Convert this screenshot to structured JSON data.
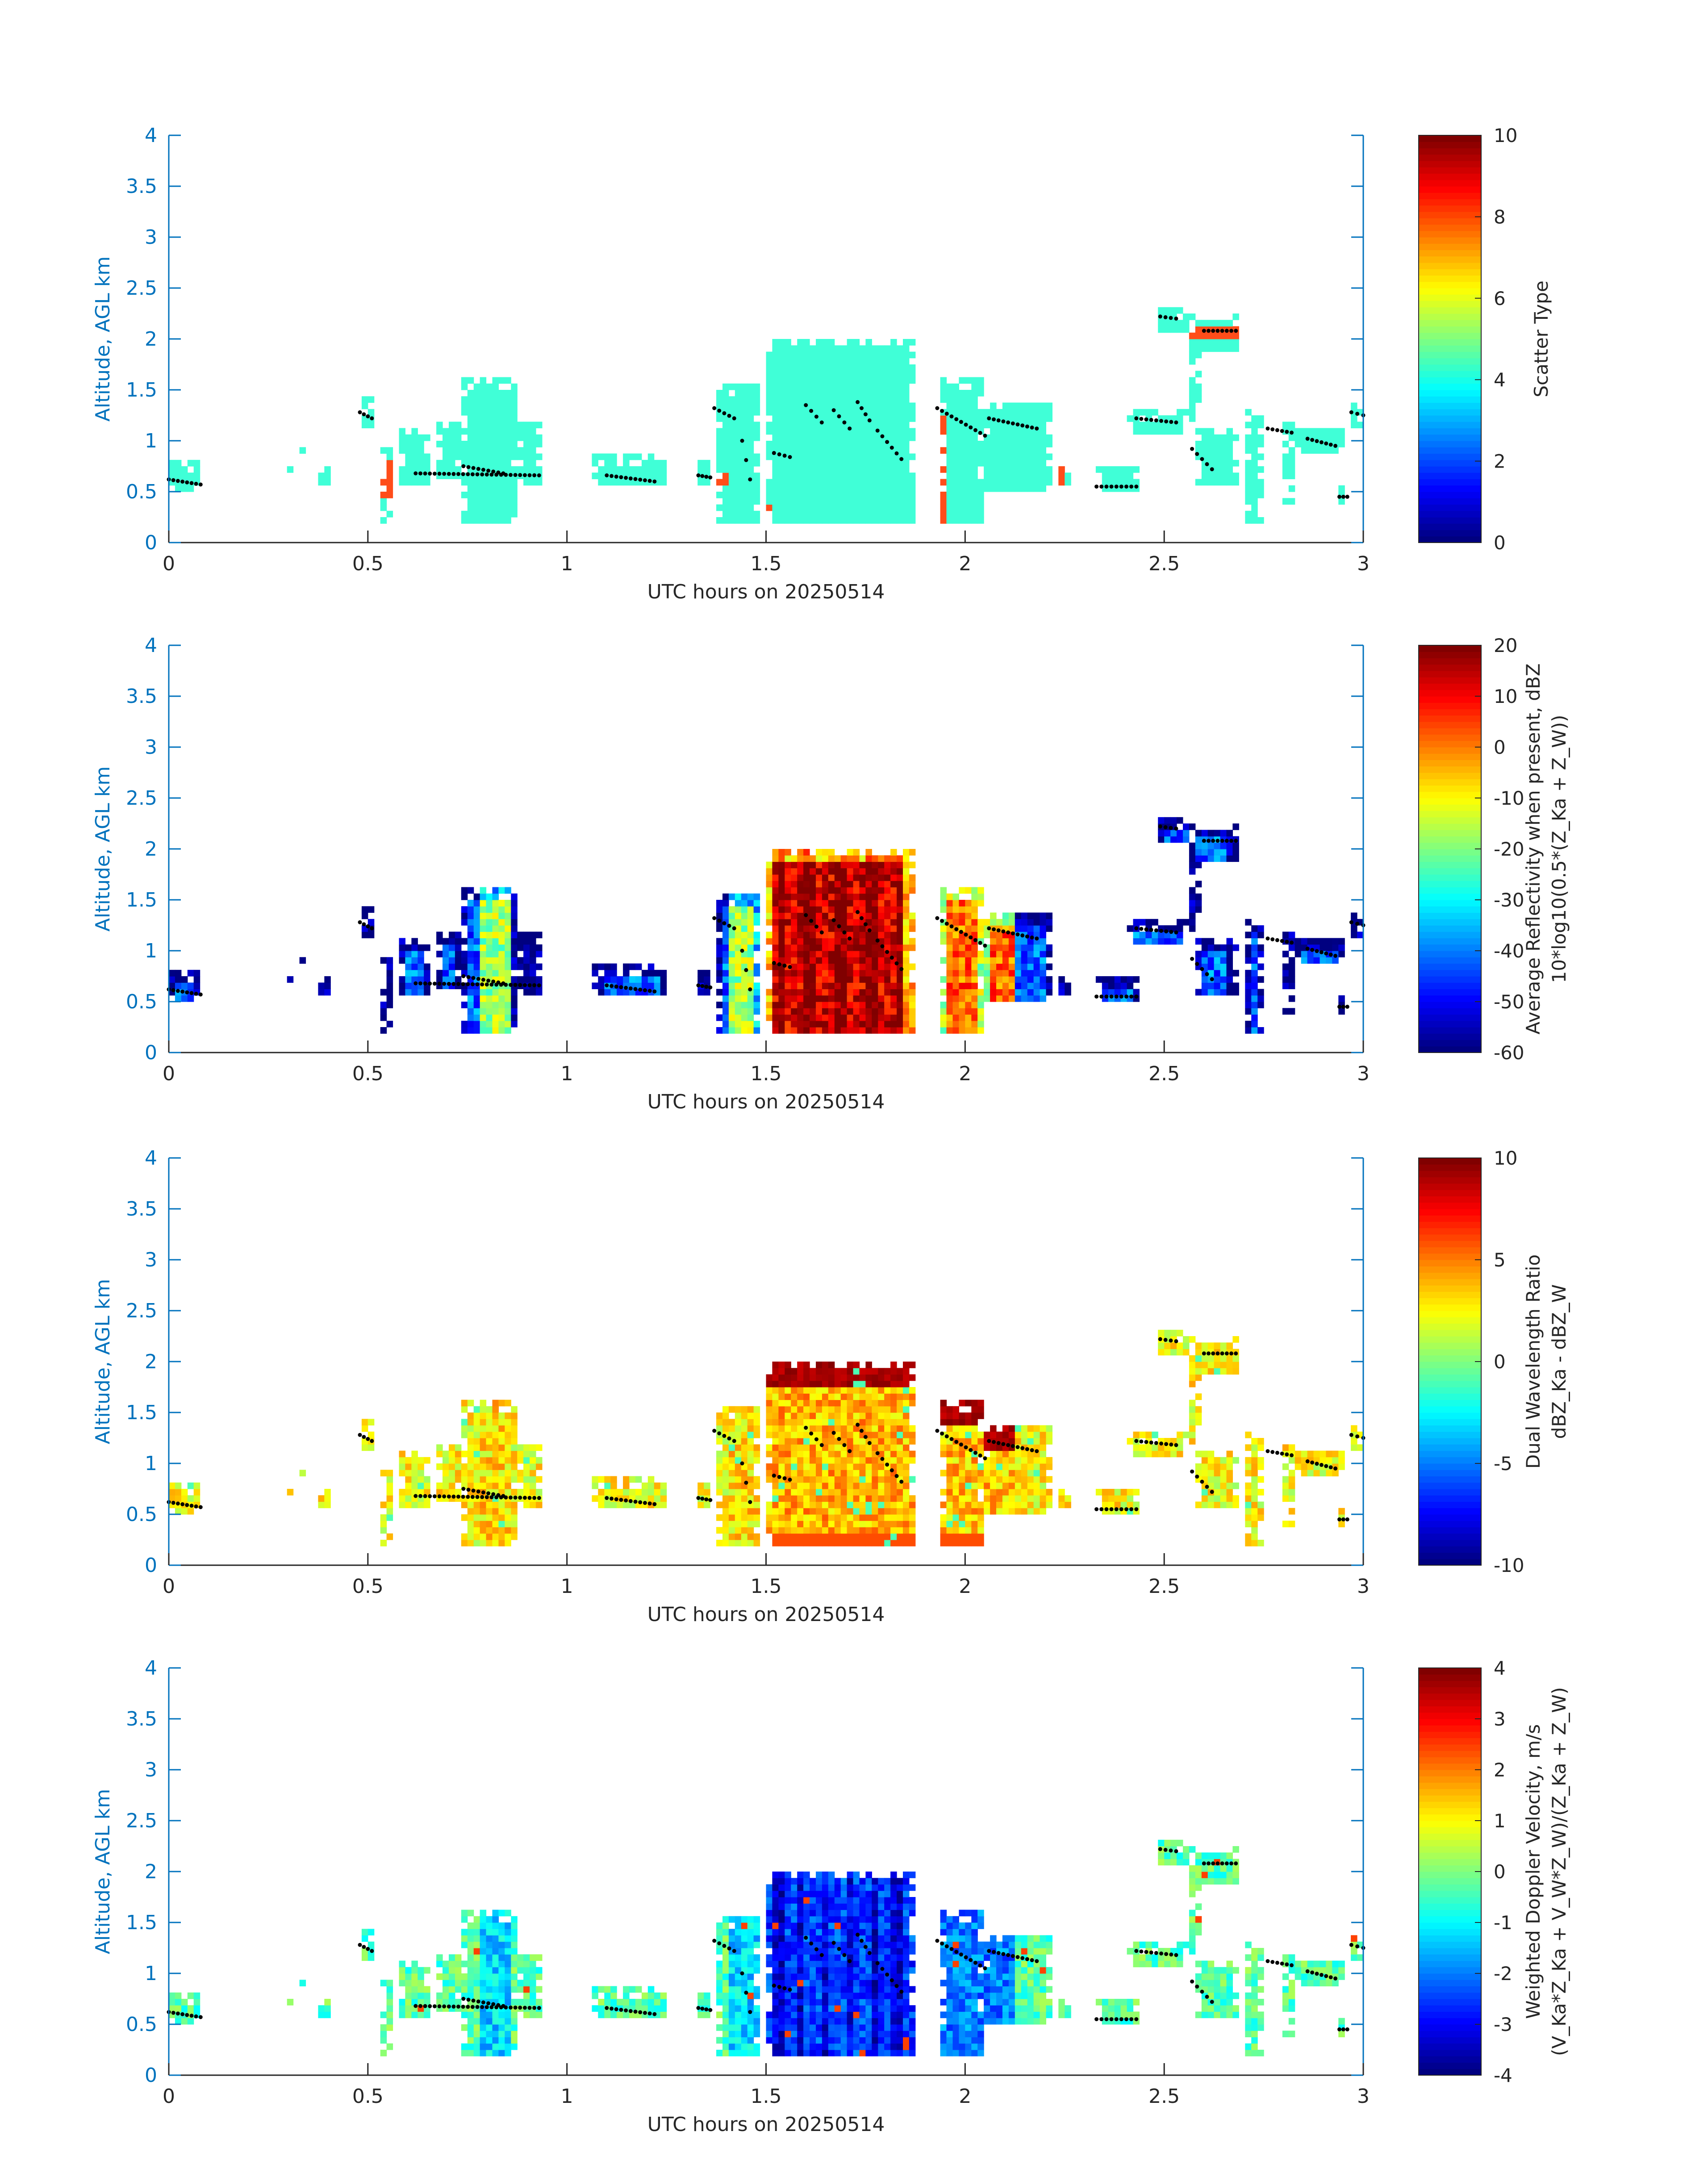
{
  "chart_data": [
    {
      "type": "heatmap",
      "xlabel": "UTC hours on 20250514",
      "ylabel": "Altitude, AGL km",
      "xlim": [
        0,
        3
      ],
      "ylim": [
        0,
        4
      ],
      "xticks": [
        "0",
        "0.5",
        "1",
        "1.5",
        "2",
        "2.5",
        "3"
      ],
      "yticks": [
        "0",
        "0.5",
        "1",
        "1.5",
        "2",
        "2.5",
        "3",
        "3.5",
        "4"
      ],
      "colorbar": {
        "label": "Scatter Type",
        "label2": "",
        "range": [
          0,
          10
        ],
        "ticks": [
          "0",
          "2",
          "4",
          "6",
          "8",
          "10"
        ]
      },
      "grid": false
    },
    {
      "type": "heatmap",
      "xlabel": "UTC hours on 20250514",
      "ylabel": "Altitude, AGL km",
      "xlim": [
        0,
        3
      ],
      "ylim": [
        0,
        4
      ],
      "xticks": [
        "0",
        "0.5",
        "1",
        "1.5",
        "2",
        "2.5",
        "3"
      ],
      "yticks": [
        "0",
        "0.5",
        "1",
        "1.5",
        "2",
        "2.5",
        "3",
        "3.5",
        "4"
      ],
      "colorbar": {
        "label": "Average Reflectivity when present, dBZ",
        "label2": "10*log10(0.5*(Z_Ka + Z_W))",
        "range": [
          -60,
          20
        ],
        "ticks": [
          "-60",
          "-50",
          "-40",
          "-30",
          "-20",
          "-10",
          "0",
          "10",
          "20"
        ]
      },
      "grid": false
    },
    {
      "type": "heatmap",
      "xlabel": "UTC hours on 20250514",
      "ylabel": "Altitude, AGL km",
      "xlim": [
        0,
        3
      ],
      "ylim": [
        0,
        4
      ],
      "xticks": [
        "0",
        "0.5",
        "1",
        "1.5",
        "2",
        "2.5",
        "3"
      ],
      "yticks": [
        "0",
        "0.5",
        "1",
        "1.5",
        "2",
        "2.5",
        "3",
        "3.5",
        "4"
      ],
      "colorbar": {
        "label": "Dual Wavelength Ratio",
        "label2": "dBZ_Ka - dBZ_W",
        "range": [
          -10,
          10
        ],
        "ticks": [
          "-10",
          "-5",
          "0",
          "5",
          "10"
        ]
      },
      "grid": false
    },
    {
      "type": "heatmap",
      "xlabel": "UTC hours on 20250514",
      "ylabel": "Altitude, AGL km",
      "xlim": [
        0,
        3
      ],
      "ylim": [
        0,
        4
      ],
      "xticks": [
        "0",
        "0.5",
        "1",
        "1.5",
        "2",
        "2.5",
        "3"
      ],
      "yticks": [
        "0",
        "0.5",
        "1",
        "1.5",
        "2",
        "2.5",
        "3",
        "3.5",
        "4"
      ],
      "colorbar": {
        "label": "Weighted Doppler Velocity, m/s",
        "label2": "(V_Ka*Z_Ka + V_W*Z_W)/(Z_Ka + Z_W)",
        "range": [
          -4,
          4
        ],
        "ticks": [
          "-4",
          "-3",
          "-2",
          "-1",
          "0",
          "1",
          "2",
          "3",
          "4"
        ]
      },
      "grid": false
    }
  ],
  "colors": {
    "axis_y": "#0072bd",
    "axis_x": "#262626",
    "scatter_cyan": "#40ffd7",
    "scatter_red": "#ff4d1a",
    "cloud_top_marker": "#000000"
  }
}
